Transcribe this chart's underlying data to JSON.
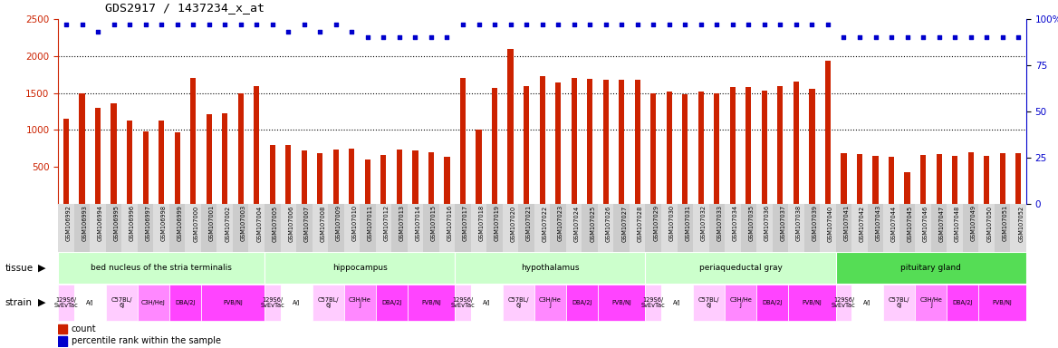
{
  "title": "GDS2917 / 1437234_x_at",
  "samples": [
    "GSM106992",
    "GSM106993",
    "GSM106994",
    "GSM106995",
    "GSM106996",
    "GSM106997",
    "GSM106998",
    "GSM106999",
    "GSM107000",
    "GSM107001",
    "GSM107002",
    "GSM107003",
    "GSM107004",
    "GSM107005",
    "GSM107006",
    "GSM107007",
    "GSM107008",
    "GSM107009",
    "GSM107010",
    "GSM107011",
    "GSM107012",
    "GSM107013",
    "GSM107014",
    "GSM107015",
    "GSM107016",
    "GSM107017",
    "GSM107018",
    "GSM107019",
    "GSM107020",
    "GSM107021",
    "GSM107022",
    "GSM107023",
    "GSM107024",
    "GSM107025",
    "GSM107026",
    "GSM107027",
    "GSM107028",
    "GSM107029",
    "GSM107030",
    "GSM107031",
    "GSM107032",
    "GSM107033",
    "GSM107034",
    "GSM107035",
    "GSM107036",
    "GSM107037",
    "GSM107038",
    "GSM107039",
    "GSM107040",
    "GSM107041",
    "GSM107042",
    "GSM107043",
    "GSM107044",
    "GSM107045",
    "GSM107046",
    "GSM107047",
    "GSM107048",
    "GSM107049",
    "GSM107050",
    "GSM107051",
    "GSM107052"
  ],
  "counts": [
    1150,
    1490,
    1300,
    1360,
    1120,
    980,
    1130,
    960,
    1700,
    1210,
    1230,
    1500,
    1590,
    790,
    800,
    720,
    680,
    730,
    750,
    600,
    660,
    730,
    720,
    690,
    640,
    1700,
    1000,
    1570,
    2100,
    1590,
    1730,
    1640,
    1700,
    1690,
    1680,
    1680,
    1680,
    1490,
    1520,
    1480,
    1520,
    1490,
    1580,
    1580,
    1530,
    1590,
    1660,
    1560,
    1940,
    680,
    670,
    650,
    630,
    430,
    660,
    670,
    650,
    690,
    650,
    680,
    680
  ],
  "percentiles": [
    97,
    97,
    93,
    97,
    97,
    97,
    97,
    97,
    97,
    97,
    97,
    97,
    97,
    97,
    93,
    97,
    93,
    97,
    93,
    90,
    90,
    90,
    90,
    90,
    90,
    97,
    97,
    97,
    97,
    97,
    97,
    97,
    97,
    97,
    97,
    97,
    97,
    97,
    97,
    97,
    97,
    97,
    97,
    97,
    97,
    97,
    97,
    97,
    97,
    90,
    90,
    90,
    90,
    90,
    90,
    90,
    90,
    90,
    90,
    90,
    90
  ],
  "tissues": [
    {
      "name": "bed nucleus of the stria terminalis",
      "start": 0,
      "end": 12,
      "color": "#ccffcc"
    },
    {
      "name": "hippocampus",
      "start": 13,
      "end": 24,
      "color": "#ccffcc"
    },
    {
      "name": "hypothalamus",
      "start": 25,
      "end": 36,
      "color": "#ccffcc"
    },
    {
      "name": "periaqueductal gray",
      "start": 37,
      "end": 48,
      "color": "#ccffcc"
    },
    {
      "name": "pituitary gland",
      "start": 49,
      "end": 60,
      "color": "#55dd55"
    }
  ],
  "strains": [
    {
      "start": 0,
      "end": 0,
      "name": "129S6/\nSvEvTac",
      "color": "#ffccff"
    },
    {
      "start": 1,
      "end": 2,
      "name": "A/J",
      "color": "#ffffff"
    },
    {
      "start": 3,
      "end": 4,
      "name": "C57BL/\n6J",
      "color": "#ffccff"
    },
    {
      "start": 5,
      "end": 6,
      "name": "C3H/HeJ",
      "color": "#ff88ff"
    },
    {
      "start": 7,
      "end": 8,
      "name": "DBA/2J",
      "color": "#ff44ff"
    },
    {
      "start": 9,
      "end": 12,
      "name": "FVB/NJ",
      "color": "#ff44ff"
    },
    {
      "start": 13,
      "end": 13,
      "name": "129S6/\nSvEvTac",
      "color": "#ffccff"
    },
    {
      "start": 14,
      "end": 15,
      "name": "A/J",
      "color": "#ffffff"
    },
    {
      "start": 16,
      "end": 17,
      "name": "C57BL/\n6J",
      "color": "#ffccff"
    },
    {
      "start": 18,
      "end": 19,
      "name": "C3H/He\nJ",
      "color": "#ff88ff"
    },
    {
      "start": 20,
      "end": 21,
      "name": "DBA/2J",
      "color": "#ff44ff"
    },
    {
      "start": 22,
      "end": 24,
      "name": "FVB/NJ",
      "color": "#ff44ff"
    },
    {
      "start": 25,
      "end": 25,
      "name": "129S6/\nSvEvTac",
      "color": "#ffccff"
    },
    {
      "start": 26,
      "end": 27,
      "name": "A/J",
      "color": "#ffffff"
    },
    {
      "start": 28,
      "end": 29,
      "name": "C57BL/\n6J",
      "color": "#ffccff"
    },
    {
      "start": 30,
      "end": 31,
      "name": "C3H/He\nJ",
      "color": "#ff88ff"
    },
    {
      "start": 32,
      "end": 33,
      "name": "DBA/2J",
      "color": "#ff44ff"
    },
    {
      "start": 34,
      "end": 36,
      "name": "FVB/NJ",
      "color": "#ff44ff"
    },
    {
      "start": 37,
      "end": 37,
      "name": "129S6/\nSvEvTac",
      "color": "#ffccff"
    },
    {
      "start": 38,
      "end": 39,
      "name": "A/J",
      "color": "#ffffff"
    },
    {
      "start": 40,
      "end": 41,
      "name": "C57BL/\n6J",
      "color": "#ffccff"
    },
    {
      "start": 42,
      "end": 43,
      "name": "C3H/He\nJ",
      "color": "#ff88ff"
    },
    {
      "start": 44,
      "end": 45,
      "name": "DBA/2J",
      "color": "#ff44ff"
    },
    {
      "start": 46,
      "end": 48,
      "name": "FVB/NJ",
      "color": "#ff44ff"
    },
    {
      "start": 49,
      "end": 49,
      "name": "129S6/\nSvEvTac",
      "color": "#ffccff"
    },
    {
      "start": 50,
      "end": 51,
      "name": "A/J",
      "color": "#ffffff"
    },
    {
      "start": 52,
      "end": 53,
      "name": "C57BL/\n6J",
      "color": "#ffccff"
    },
    {
      "start": 54,
      "end": 55,
      "name": "C3H/He\nJ",
      "color": "#ff88ff"
    },
    {
      "start": 56,
      "end": 57,
      "name": "DBA/2J",
      "color": "#ff44ff"
    },
    {
      "start": 58,
      "end": 60,
      "name": "FVB/NJ",
      "color": "#ff44ff"
    }
  ],
  "bar_color": "#cc2200",
  "dot_color": "#0000cc",
  "ylim_left": [
    0,
    2500
  ],
  "ylim_right": [
    0,
    100
  ],
  "yticks_left": [
    500,
    1000,
    1500,
    2000,
    2500
  ],
  "yticks_right": [
    0,
    25,
    50,
    75,
    100
  ]
}
